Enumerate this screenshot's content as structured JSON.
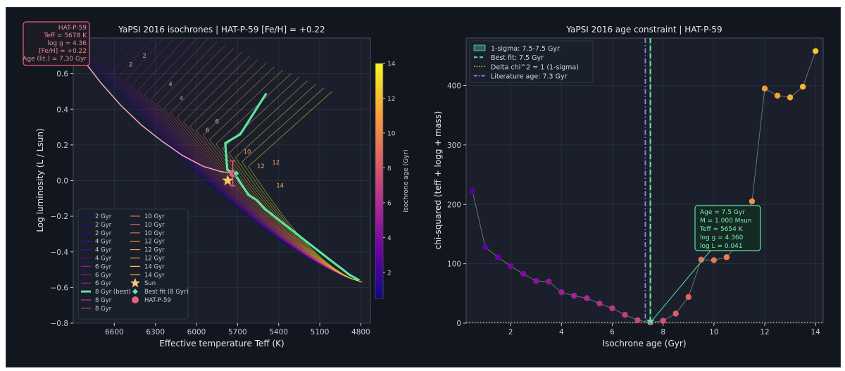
{
  "chart_data": [
    {
      "type": "line",
      "title": "YaPSI 2016 isochrones  |  HAT-P-59  [Fe/H] = +0.22",
      "xlabel": "Effective temperature  Teff (K)",
      "ylabel": "Log luminosity  (L / Lsun)",
      "xlim": [
        6900,
        4730
      ],
      "ylim": [
        -0.8,
        0.8
      ],
      "x_ticks": [
        6600,
        6300,
        6000,
        5700,
        5400,
        5100,
        4800
      ],
      "x_tick_labels": [
        "6600",
        "6300",
        "6000",
        "5700",
        "5400",
        "5100",
        "4800"
      ],
      "y_ticks": [
        -0.8,
        -0.6,
        -0.4,
        -0.2,
        0.0,
        0.2,
        0.4,
        0.6
      ],
      "y_tick_labels": [
        "−0.8",
        "−0.6",
        "−0.4",
        "−0.2",
        "0.0",
        "0.2",
        "0.4",
        "0.6"
      ],
      "grid": true,
      "legend_placement": "lower-left",
      "colorbar": {
        "label": "Isochrone age (Gyr)",
        "range": [
          0.5,
          14
        ],
        "ticks": [
          2,
          4,
          6,
          8,
          10,
          12,
          14
        ],
        "tick_labels": [
          "2",
          "4",
          "6",
          "8",
          "10",
          "12",
          "14"
        ],
        "colormap": [
          "#0d0887",
          "#6a00a8",
          "#b12a90",
          "#e16462",
          "#fca636",
          "#f0f921"
        ]
      },
      "info_box": {
        "lines": [
          "HAT-P-59",
          "Teff = 5678 K",
          "log g = 4.36",
          "[Fe/H] = +0.22",
          "Age (lit.) = 7.30 Gyr"
        ],
        "border_color": "#e8607a"
      },
      "legend_col1": [
        {
          "label": "2 Gyr",
          "color": "#2c0594"
        },
        {
          "label": "2 Gyr",
          "color": "#2c0594"
        },
        {
          "label": "2 Gyr",
          "color": "#2c0594"
        },
        {
          "label": "4 Gyr",
          "color": "#5c01a6"
        },
        {
          "label": "4 Gyr",
          "color": "#5c01a6"
        },
        {
          "label": "4 Gyr",
          "color": "#5c01a6"
        },
        {
          "label": "6 Gyr",
          "color": "#9c179e"
        },
        {
          "label": "6 Gyr",
          "color": "#9c179e"
        },
        {
          "label": "6 Gyr",
          "color": "#9c179e"
        },
        {
          "label": "8 Gyr (best)",
          "color": "#5ee3a1"
        },
        {
          "label": "8 Gyr",
          "color": "#c43d7d"
        },
        {
          "label": "8 Gyr",
          "color": "#c43d7d"
        }
      ],
      "legend_col2": [
        {
          "label": "10 Gyr",
          "color": "#e66c5c"
        },
        {
          "label": "10 Gyr",
          "color": "#e66c5c"
        },
        {
          "label": "10 Gyr",
          "color": "#e66c5c"
        },
        {
          "label": "12 Gyr",
          "color": "#f99a3e"
        },
        {
          "label": "12 Gyr",
          "color": "#f99a3e"
        },
        {
          "label": "12 Gyr",
          "color": "#f99a3e"
        },
        {
          "label": "14 Gyr",
          "color": "#fcce25"
        },
        {
          "label": "14 Gyr",
          "color": "#fcce25"
        },
        {
          "label": "Sun",
          "color": "#f7c873"
        },
        {
          "label": "Best fit (8 Gyr)",
          "color": "#5ee3a1"
        },
        {
          "label": "HAT-P-59",
          "color": "#e8607a"
        }
      ],
      "best_fit_track": {
        "name": "8 Gyr (best)",
        "color": "#5ee3a1",
        "points": [
          [
            5490,
            0.49
          ],
          [
            5680,
            0.26
          ],
          [
            5790,
            0.21
          ],
          [
            5775,
            0.06
          ],
          [
            5725,
            0.04
          ],
          [
            5620,
            -0.08
          ],
          [
            5560,
            -0.11
          ],
          [
            5500,
            -0.16
          ],
          [
            5400,
            -0.22
          ],
          [
            5300,
            -0.28
          ],
          [
            5200,
            -0.34
          ],
          [
            5100,
            -0.4
          ],
          [
            5000,
            -0.46
          ],
          [
            4930,
            -0.5
          ],
          [
            4880,
            -0.53
          ],
          [
            4810,
            -0.56
          ]
        ]
      },
      "target_track": {
        "color": "#f4a8b8",
        "points": [
          [
            6850,
            0.7
          ],
          [
            6700,
            0.55
          ],
          [
            6550,
            0.42
          ],
          [
            6400,
            0.31
          ],
          [
            6250,
            0.22
          ],
          [
            6100,
            0.14
          ],
          [
            5950,
            0.08
          ],
          [
            5820,
            0.05
          ],
          [
            5730,
            0.04
          ]
        ]
      },
      "sun": {
        "teff": 5772,
        "logL": 0.0,
        "color": "#f7c873"
      },
      "best_fit_point": {
        "teff": 5710,
        "logL": 0.04,
        "color": "#5ee3a1"
      },
      "target": {
        "teff": 5735,
        "logL": 0.04,
        "err_teff": 25,
        "err_logL": 0.07,
        "color": "#e8607a"
      },
      "track_labels": [
        {
          "text": "2",
          "teff": 6480,
          "logL": 0.64
        },
        {
          "text": "2",
          "teff": 6380,
          "logL": 0.69
        },
        {
          "text": "4",
          "teff": 6190,
          "logL": 0.53
        },
        {
          "text": "4",
          "teff": 6110,
          "logL": 0.45
        },
        {
          "text": "6",
          "teff": 5920,
          "logL": 0.27
        },
        {
          "text": "6",
          "teff": 5850,
          "logL": 0.32
        },
        {
          "text": "10",
          "teff": 5630,
          "logL": 0.15
        },
        {
          "text": "12",
          "teff": 5530,
          "logL": 0.07
        },
        {
          "text": "12",
          "teff": 5420,
          "logL": 0.09
        },
        {
          "text": "14",
          "teff": 5390,
          "logL": -0.04
        }
      ]
    },
    {
      "type": "scatter",
      "title": "YaPSI 2016 age constraint  |  HAT-P-59",
      "xlabel": "Isochrone age  (Gyr)",
      "ylabel": "chi-squared  (teff + logg + mass)",
      "xlim": [
        0.25,
        14.3
      ],
      "ylim": [
        0,
        480
      ],
      "x_ticks": [
        2,
        4,
        6,
        8,
        10,
        12,
        14
      ],
      "x_tick_labels": [
        "2",
        "4",
        "6",
        "8",
        "10",
        "12",
        "14"
      ],
      "y_ticks": [
        0,
        100,
        200,
        300,
        400
      ],
      "y_tick_labels": [
        "0",
        "100",
        "200",
        "300",
        "400"
      ],
      "grid": true,
      "legend_placement": "top-left",
      "legend": [
        {
          "label": "1-sigma: 7.5-7.5 Gyr",
          "kind": "patch",
          "color": "#5ee3a1"
        },
        {
          "label": "Best fit: 7.5 Gyr",
          "kind": "dashed",
          "color": "#5ee3a1"
        },
        {
          "label": "Delta chi^2 = 1  (1-sigma)",
          "kind": "dotted",
          "color": "#f0b860"
        },
        {
          "label": "Literature age: 7.3 Gyr",
          "kind": "dashdot",
          "color": "#9b7fe6"
        }
      ],
      "x": [
        0.5,
        1.0,
        1.5,
        2.0,
        2.5,
        3.0,
        3.5,
        4.0,
        4.5,
        5.0,
        5.5,
        6.0,
        6.5,
        7.0,
        7.5,
        8.0,
        8.5,
        9.0,
        9.5,
        10.0,
        10.5,
        11.0,
        11.5,
        12.0,
        12.5,
        13.0,
        13.5,
        14.0
      ],
      "y": [
        222,
        128,
        111,
        96,
        83,
        71,
        70,
        52,
        46,
        42,
        33,
        25,
        14,
        5,
        1,
        4,
        16,
        44,
        107,
        106,
        111,
        136,
        205,
        395,
        383,
        380,
        398,
        458
      ],
      "best_fit_age": 7.5,
      "literature_age": 7.3,
      "delta_chi2_level": 1,
      "annotation": {
        "lines": [
          "Age = 7.5 Gyr",
          "M = 1.000 Msun",
          "Teff = 5654 K",
          "log g = 4.360",
          "log L = 0.041"
        ],
        "color": "#5ee3a1"
      }
    }
  ]
}
